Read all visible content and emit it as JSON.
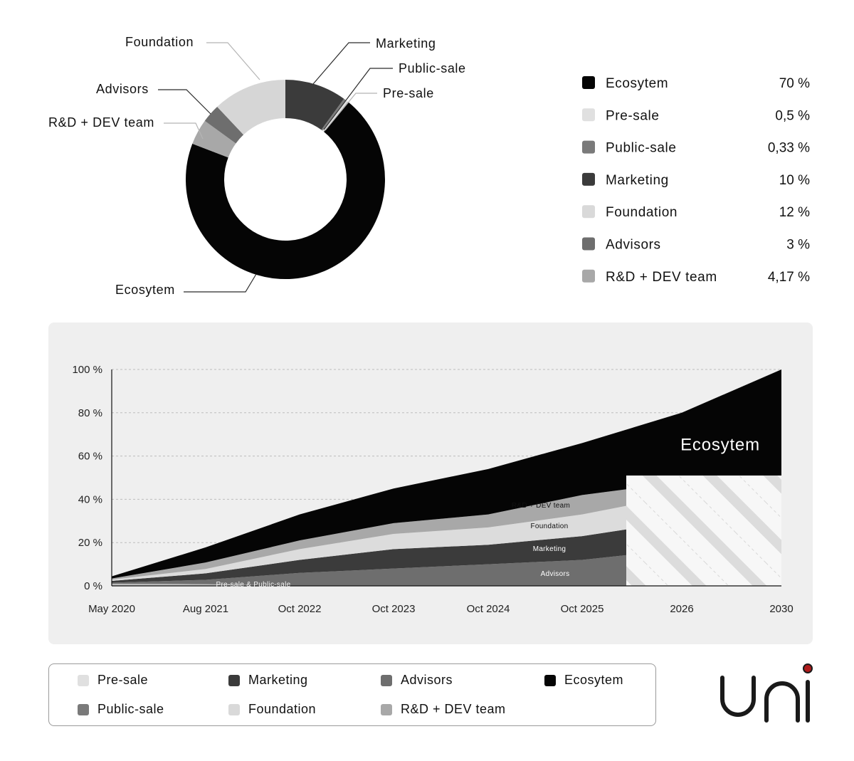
{
  "donut": {
    "segments": [
      {
        "name": "Marketing",
        "value": 10,
        "color": "#3b3b3b"
      },
      {
        "name": "Public-sale",
        "value": 0.33,
        "color": "#7a7a7a"
      },
      {
        "name": "Pre-sale",
        "value": 0.5,
        "color": "#dedede"
      },
      {
        "name": "Ecosytem",
        "value": 70,
        "color": "#050505"
      },
      {
        "name": "R&D + DEV team",
        "value": 4.17,
        "color": "#a8a8a8"
      },
      {
        "name": "Advisors",
        "value": 3,
        "color": "#6e6e6e"
      },
      {
        "name": "Foundation",
        "value": 12,
        "color": "#d6d6d6"
      }
    ]
  },
  "allocation_legend": [
    {
      "name": "Ecosytem",
      "value_label": "70 %",
      "color": "#050505"
    },
    {
      "name": "Pre-sale",
      "value_label": "0,5 %",
      "color": "#e0e0e0"
    },
    {
      "name": "Public-sale",
      "value_label": "0,33 %",
      "color": "#7a7a7a"
    },
    {
      "name": "Marketing",
      "value_label": "10 %",
      "color": "#3b3b3b"
    },
    {
      "name": "Foundation",
      "value_label": "12 %",
      "color": "#d9d9d9"
    },
    {
      "name": "Advisors",
      "value_label": "3 %",
      "color": "#6e6e6e"
    },
    {
      "name": "R&D + DEV team",
      "value_label": "4,17 %",
      "color": "#a8a8a8"
    }
  ],
  "chart_data": {
    "type": "area",
    "title": "",
    "xlabel": "",
    "ylabel": "",
    "ylim": [
      0,
      100
    ],
    "y_ticks": [
      "0 %",
      "20 %",
      "40 %",
      "60 %",
      "80 %",
      "100 %"
    ],
    "x_ticks": [
      "May 2020",
      "Aug 2021",
      "Oct 2022",
      "Oct 2023",
      "Oct 2024",
      "Oct 2025",
      "2026",
      "2030"
    ],
    "grid": true,
    "projected_from": "2026",
    "x": [
      "May 2020",
      "Aug 2021",
      "Oct 2022",
      "Oct 2023",
      "Oct 2024",
      "Oct 2025",
      "2026",
      "2030"
    ],
    "series": [
      {
        "name": "Pre-sale & Public-sale",
        "color": "#bdbdbd",
        "values": [
          1,
          0.8,
          0,
          0,
          0,
          0,
          0,
          0
        ]
      },
      {
        "name": "Advisors",
        "color": "#6e6e6e",
        "values": [
          0.5,
          2,
          6,
          8,
          10,
          12,
          17,
          18
        ]
      },
      {
        "name": "Marketing",
        "color": "#3b3b3b",
        "values": [
          0.8,
          3,
          6,
          9,
          9,
          11,
          13,
          13
        ]
      },
      {
        "name": "Foundation",
        "color": "#dcdcdc",
        "values": [
          0.6,
          2,
          5,
          7,
          8,
          10,
          12,
          12
        ]
      },
      {
        "name": "R&D + DEV team",
        "color": "#a8a8a8",
        "values": [
          0.5,
          3,
          4,
          5,
          6,
          9,
          6,
          8
        ]
      },
      {
        "name": "Ecosytem",
        "color": "#050505",
        "values": [
          1,
          7,
          12,
          16,
          21,
          24,
          32,
          49
        ]
      }
    ]
  },
  "area_labels": [
    {
      "series": "Pre-sale & Public-sale",
      "text": "Pre-sale & Public-sale"
    },
    {
      "series": "Advisors",
      "text": "Advisors"
    },
    {
      "series": "Marketing",
      "text": "Marketing"
    },
    {
      "series": "Foundation",
      "text": "Foundation"
    },
    {
      "series": "R&D + DEV team",
      "text": "R&D + DEV team"
    },
    {
      "series": "Ecosytem",
      "text": "Ecosytem"
    }
  ],
  "bottom_legend": [
    {
      "name": "Pre-sale",
      "color": "#e0e0e0"
    },
    {
      "name": "Marketing",
      "color": "#3b3b3b"
    },
    {
      "name": "Advisors",
      "color": "#6e6e6e"
    },
    {
      "name": "Ecosytem",
      "color": "#050505"
    },
    {
      "name": "Public-sale",
      "color": "#7a7a7a"
    },
    {
      "name": "Foundation",
      "color": "#d9d9d9"
    },
    {
      "name": "R&D + DEV team",
      "color": "#a8a8a8"
    }
  ],
  "brand": {
    "logo_text": "uni",
    "dot_color": "#b01c1c"
  }
}
